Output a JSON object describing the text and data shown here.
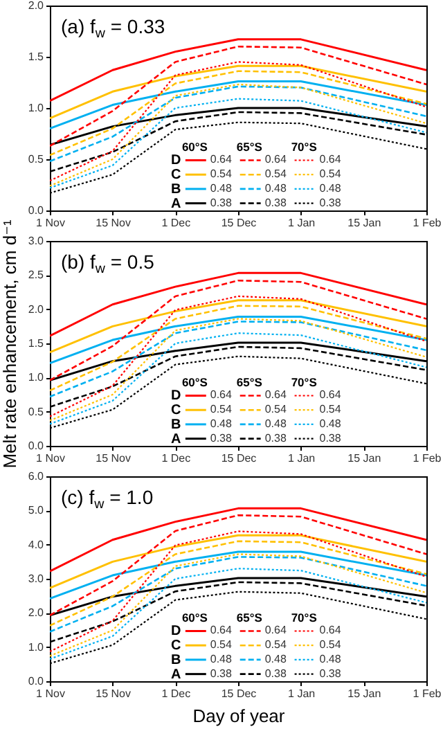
{
  "chart_data": [
    {
      "type": "line",
      "title": "(a) f$_{w}$ = 0.33",
      "categories": [
        "1 Nov",
        "15 Nov",
        "1 Dec",
        "15 Dec",
        "1 Jan",
        "15 Jan",
        "1 Feb"
      ],
      "ylim": [
        0,
        2
      ],
      "yticks": [
        {
          "value": 0,
          "label": "0.0"
        },
        {
          "value": 0.5,
          "label": "0.5"
        },
        {
          "value": 1,
          "label": "1.0"
        },
        {
          "value": 1.5,
          "label": "1.5"
        },
        {
          "value": 2,
          "label": "2.0"
        }
      ],
      "legend": "bottom",
      "annotations": [
        "60°S",
        "65°S",
        "70°S",
        "D",
        "C",
        "B",
        "A"
      ],
      "series": [
        {
          "name": "0.64",
          "color": "#ff0000",
          "line_style": "solid",
          "values": [
            1.07,
            1.37,
            1.55,
            1.67,
            1.67,
            null,
            1.37
          ]
        },
        {
          "name": "0.54",
          "color": "#ffc000",
          "line_style": "solid",
          "values": [
            0.9,
            1.16,
            1.31,
            1.41,
            1.41,
            null,
            1.16
          ]
        },
        {
          "name": "0.48",
          "color": "#00b0f0",
          "line_style": "solid",
          "values": [
            0.8,
            1.03,
            1.16,
            1.26,
            1.26,
            null,
            1.03
          ]
        },
        {
          "name": "0.38",
          "color": "#000000",
          "line_style": "solid",
          "values": [
            0.64,
            0.82,
            0.93,
            1.0,
            1.0,
            null,
            0.82
          ]
        },
        {
          "name": "0.64",
          "color": "#ff0000",
          "line_style": "dashed",
          "values": [
            0.63,
            0.97,
            1.45,
            1.6,
            1.59,
            null,
            1.23
          ]
        },
        {
          "name": "0.54",
          "color": "#ffc000",
          "line_style": "dashed",
          "values": [
            0.54,
            0.8,
            1.24,
            1.36,
            1.35,
            null,
            1.04
          ]
        },
        {
          "name": "0.48",
          "color": "#00b0f0",
          "line_style": "dashed",
          "values": [
            0.48,
            0.72,
            1.1,
            1.21,
            1.2,
            null,
            0.92
          ]
        },
        {
          "name": "0.38",
          "color": "#000000",
          "line_style": "dashed",
          "values": [
            0.38,
            0.57,
            0.87,
            0.96,
            0.95,
            null,
            0.74
          ]
        },
        {
          "name": "0.64",
          "color": "#ff0000",
          "line_style": "dotted",
          "values": [
            0.29,
            0.58,
            1.32,
            1.45,
            1.42,
            null,
            1.01
          ]
        },
        {
          "name": "0.54",
          "color": "#ffc000",
          "line_style": "dotted",
          "values": [
            0.24,
            0.5,
            1.12,
            1.23,
            1.2,
            null,
            0.85
          ]
        },
        {
          "name": "0.48",
          "color": "#00b0f0",
          "line_style": "dotted",
          "values": [
            0.22,
            0.44,
            1.0,
            1.09,
            1.07,
            null,
            0.76
          ]
        },
        {
          "name": "0.38",
          "color": "#000000",
          "line_style": "dotted",
          "values": [
            0.17,
            0.35,
            0.79,
            0.86,
            0.85,
            null,
            0.6
          ]
        }
      ]
    },
    {
      "type": "line",
      "title": "(b) f$_{w}$ = 0.5",
      "ylabel": "Melt rate enhancement, cm d⁻¹",
      "categories": [
        "1 Nov",
        "15 Nov",
        "1 Dec",
        "15 Dec",
        "1 Jan",
        "15 Jan",
        "1 Feb"
      ],
      "ylim": [
        0,
        3
      ],
      "yticks": [
        {
          "value": 0,
          "label": "0.0"
        },
        {
          "value": 0.5,
          "label": "0.5"
        },
        {
          "value": 1,
          "label": "1.0"
        },
        {
          "value": 1.5,
          "label": "1.5"
        },
        {
          "value": 2,
          "label": "2.0"
        },
        {
          "value": 2.5,
          "label": "2.5"
        },
        {
          "value": 3,
          "label": "3.0"
        }
      ],
      "legend": "bottom",
      "annotations": [
        "60°S",
        "65°S",
        "70°S",
        "D",
        "C",
        "B",
        "A"
      ],
      "series": [
        {
          "name": "0.64",
          "color": "#ff0000",
          "line_style": "solid",
          "values": [
            1.61,
            2.07,
            2.33,
            2.53,
            2.53,
            null,
            2.07
          ]
        },
        {
          "name": "0.54",
          "color": "#ffc000",
          "line_style": "solid",
          "values": [
            1.37,
            1.75,
            1.97,
            2.13,
            2.13,
            null,
            1.75
          ]
        },
        {
          "name": "0.48",
          "color": "#00b0f0",
          "line_style": "solid",
          "values": [
            1.21,
            1.55,
            1.75,
            1.89,
            1.89,
            null,
            1.55
          ]
        },
        {
          "name": "0.38",
          "color": "#000000",
          "line_style": "solid",
          "values": [
            0.96,
            1.24,
            1.39,
            1.51,
            1.51,
            null,
            1.24
          ]
        },
        {
          "name": "0.64",
          "color": "#ff0000",
          "line_style": "dashed",
          "values": [
            0.96,
            1.46,
            2.19,
            2.42,
            2.4,
            null,
            1.86
          ]
        },
        {
          "name": "0.54",
          "color": "#ffc000",
          "line_style": "dashed",
          "values": [
            0.81,
            1.23,
            1.86,
            2.05,
            2.04,
            null,
            1.57
          ]
        },
        {
          "name": "0.48",
          "color": "#00b0f0",
          "line_style": "dashed",
          "values": [
            0.72,
            1.09,
            1.65,
            1.82,
            1.81,
            null,
            1.4
          ]
        },
        {
          "name": "0.38",
          "color": "#000000",
          "line_style": "dashed",
          "values": [
            0.57,
            0.87,
            1.31,
            1.45,
            1.43,
            null,
            1.11
          ]
        },
        {
          "name": "0.64",
          "color": "#ff0000",
          "line_style": "dotted",
          "values": [
            0.43,
            0.88,
            1.99,
            2.19,
            2.15,
            null,
            1.53
          ]
        },
        {
          "name": "0.54",
          "color": "#ffc000",
          "line_style": "dotted",
          "values": [
            0.37,
            0.75,
            1.69,
            1.86,
            1.83,
            null,
            1.3
          ]
        },
        {
          "name": "0.48",
          "color": "#00b0f0",
          "line_style": "dotted",
          "values": [
            0.32,
            0.66,
            1.5,
            1.65,
            1.62,
            null,
            1.15
          ]
        },
        {
          "name": "0.38",
          "color": "#000000",
          "line_style": "dotted",
          "values": [
            0.26,
            0.53,
            1.19,
            1.31,
            1.28,
            null,
            0.91
          ]
        }
      ]
    },
    {
      "type": "line",
      "title": "(c) f$_{w}$ = 1.0",
      "xlabel": "Day of year",
      "categories": [
        "1 Nov",
        "15 Nov",
        "1 Dec",
        "15 Dec",
        "1 Jan",
        "15 Jan",
        "1 Feb"
      ],
      "ylim": [
        0,
        6
      ],
      "yticks": [
        {
          "value": 0,
          "label": "0.0"
        },
        {
          "value": 1,
          "label": "1.0"
        },
        {
          "value": 2,
          "label": "2.0"
        },
        {
          "value": 3,
          "label": "3.0"
        },
        {
          "value": 4,
          "label": "4.0"
        },
        {
          "value": 5,
          "label": "5.0"
        },
        {
          "value": 6,
          "label": "6.0"
        }
      ],
      "legend": "bottom",
      "annotations": [
        "60°S",
        "65°S",
        "70°S",
        "D",
        "C",
        "B",
        "A"
      ],
      "series": [
        {
          "name": "0.64",
          "color": "#ff0000",
          "line_style": "solid",
          "values": [
            3.22,
            4.14,
            4.67,
            5.06,
            5.06,
            null,
            4.14
          ]
        },
        {
          "name": "0.54",
          "color": "#ffc000",
          "line_style": "solid",
          "values": [
            2.73,
            3.5,
            3.94,
            4.27,
            4.27,
            null,
            3.5
          ]
        },
        {
          "name": "0.48",
          "color": "#00b0f0",
          "line_style": "solid",
          "values": [
            2.42,
            3.1,
            3.5,
            3.79,
            3.79,
            null,
            3.1
          ]
        },
        {
          "name": "0.38",
          "color": "#000000",
          "line_style": "solid",
          "values": [
            1.93,
            2.48,
            2.79,
            3.02,
            3.02,
            null,
            2.48
          ]
        },
        {
          "name": "0.64",
          "color": "#ff0000",
          "line_style": "dashed",
          "values": [
            1.93,
            2.93,
            4.4,
            4.86,
            4.82,
            null,
            3.72
          ]
        },
        {
          "name": "0.54",
          "color": "#ffc000",
          "line_style": "dashed",
          "values": [
            1.63,
            2.48,
            3.72,
            4.1,
            4.07,
            null,
            3.14
          ]
        },
        {
          "name": "0.48",
          "color": "#00b0f0",
          "line_style": "dashed",
          "values": [
            1.45,
            2.2,
            3.3,
            3.64,
            3.62,
            null,
            2.79
          ]
        },
        {
          "name": "0.38",
          "color": "#000000",
          "line_style": "dashed",
          "values": [
            1.15,
            1.75,
            2.63,
            2.9,
            2.87,
            null,
            2.21
          ]
        },
        {
          "name": "0.64",
          "color": "#ff0000",
          "line_style": "dotted",
          "values": [
            0.87,
            1.77,
            3.98,
            4.39,
            4.31,
            null,
            3.06
          ]
        },
        {
          "name": "0.54",
          "color": "#ffc000",
          "line_style": "dotted",
          "values": [
            0.74,
            1.49,
            3.37,
            3.72,
            3.66,
            null,
            2.59
          ]
        },
        {
          "name": "0.48",
          "color": "#00b0f0",
          "line_style": "dotted",
          "values": [
            0.65,
            1.32,
            3.0,
            3.3,
            3.24,
            null,
            2.3
          ]
        },
        {
          "name": "0.38",
          "color": "#000000",
          "line_style": "dotted",
          "values": [
            0.52,
            1.06,
            2.38,
            2.62,
            2.58,
            null,
            1.82
          ]
        }
      ]
    }
  ]
}
